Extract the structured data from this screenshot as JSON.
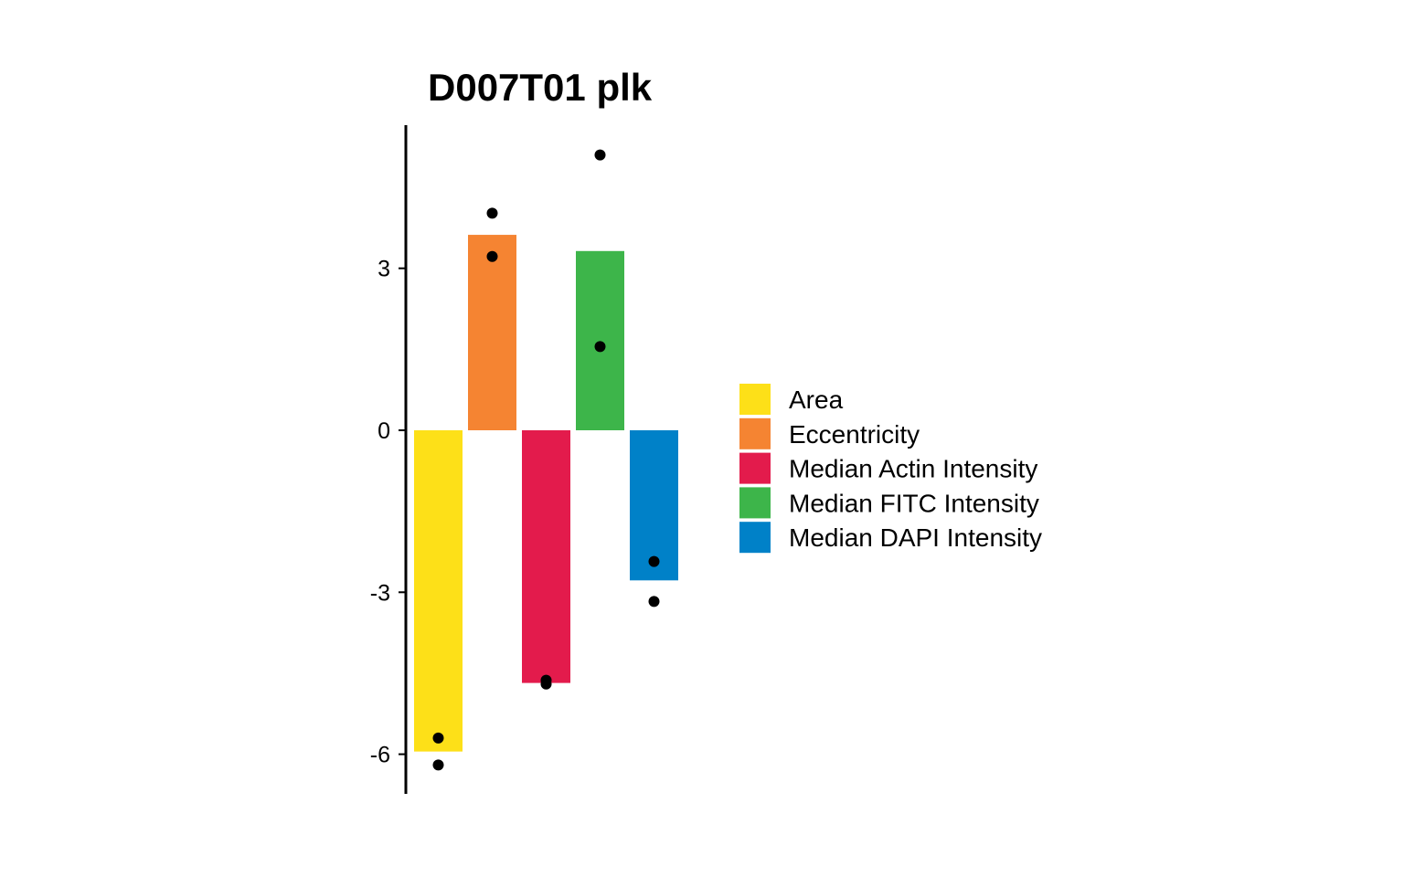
{
  "chart_data": {
    "type": "bar",
    "title": "D007T01 plk",
    "xlabel": "",
    "ylabel": "",
    "ylim": [
      -6.7,
      5.6
    ],
    "yticks": [
      {
        "value": 3,
        "label": "3"
      },
      {
        "value": 0,
        "label": "0"
      },
      {
        "value": -3,
        "label": "-3"
      },
      {
        "value": -6,
        "label": "-6"
      }
    ],
    "grid": false,
    "legend_position": "right",
    "categories": [
      "Area",
      "Eccentricity",
      "Median Actin Intensity",
      "Median FITC Intensity",
      "Median DAPI Intensity"
    ],
    "values": [
      -5.95,
      3.62,
      -4.68,
      3.32,
      -2.78
    ],
    "colors": [
      "#FDE018",
      "#F58432",
      "#E31B4C",
      "#3DB54A",
      "#0081C8"
    ],
    "points": [
      [
        -5.7,
        -6.2
      ],
      [
        4.02,
        3.22
      ],
      [
        -4.63,
        -4.7
      ],
      [
        5.1,
        1.55
      ],
      [
        -2.43,
        -3.17
      ]
    ]
  }
}
